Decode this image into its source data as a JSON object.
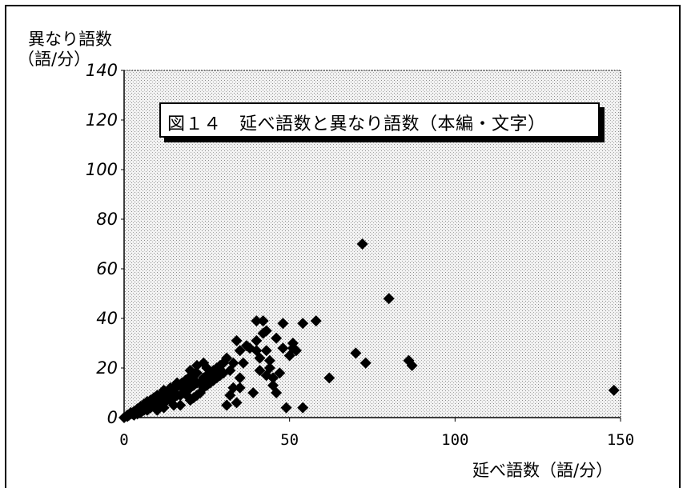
{
  "chart_data": {
    "type": "scatter",
    "title": "図１４　延べ語数と異なり語数（本編・文字）",
    "ylabel_line1": "異なり語数",
    "ylabel_line2": "（語/分）",
    "xlabel": "延べ語数（語/分）",
    "xlim": [
      0,
      150
    ],
    "ylim": [
      0,
      140
    ],
    "xticks": [
      0,
      50,
      100,
      150
    ],
    "xtick_labels": [
      "0",
      "50",
      "100",
      "150"
    ],
    "yticks": [
      0,
      20,
      40,
      60,
      80,
      100,
      120,
      140
    ],
    "ytick_labels": [
      "0",
      "20",
      "40",
      "60",
      "80",
      "100",
      "120",
      "140"
    ],
    "grid": false,
    "marker": "diamond",
    "series": [
      {
        "color": "#000000",
        "points": [
          [
            0,
            0
          ],
          [
            1,
            0.5
          ],
          [
            1.5,
            1
          ],
          [
            2,
            1.5
          ],
          [
            2.5,
            1.5
          ],
          [
            3,
            2
          ],
          [
            3,
            1
          ],
          [
            3.5,
            2.5
          ],
          [
            4,
            3
          ],
          [
            4,
            1.5
          ],
          [
            4.5,
            3
          ],
          [
            5,
            4
          ],
          [
            5,
            2
          ],
          [
            5.5,
            4
          ],
          [
            6,
            4.5
          ],
          [
            6,
            3
          ],
          [
            6.5,
            5
          ],
          [
            7,
            5
          ],
          [
            7,
            3
          ],
          [
            7.5,
            6
          ],
          [
            8,
            6
          ],
          [
            8,
            4
          ],
          [
            8.5,
            6.5
          ],
          [
            9,
            7
          ],
          [
            9,
            5
          ],
          [
            9.5,
            7.5
          ],
          [
            10,
            8
          ],
          [
            10,
            5
          ],
          [
            10.5,
            8.5
          ],
          [
            11,
            8
          ],
          [
            11,
            6
          ],
          [
            11.5,
            9
          ],
          [
            12,
            9
          ],
          [
            12,
            6
          ],
          [
            12.5,
            10
          ],
          [
            13,
            10
          ],
          [
            13,
            7
          ],
          [
            13.5,
            10.5
          ],
          [
            14,
            11
          ],
          [
            14,
            8
          ],
          [
            14.5,
            11
          ],
          [
            15,
            12
          ],
          [
            15,
            8
          ],
          [
            15.5,
            12
          ],
          [
            16,
            12.5
          ],
          [
            16,
            9
          ],
          [
            16.5,
            13
          ],
          [
            17,
            13
          ],
          [
            17,
            9
          ],
          [
            17.5,
            14
          ],
          [
            18,
            14
          ],
          [
            18,
            10
          ],
          [
            18.5,
            15
          ],
          [
            19,
            15
          ],
          [
            19,
            11
          ],
          [
            19.5,
            16
          ],
          [
            20,
            16
          ],
          [
            20,
            12
          ],
          [
            20.5,
            17
          ],
          [
            21,
            17
          ],
          [
            21,
            13
          ],
          [
            21.5,
            18
          ],
          [
            22,
            18
          ],
          [
            22,
            14
          ],
          [
            23,
            14
          ],
          [
            23,
            10
          ],
          [
            24,
            16
          ],
          [
            24,
            12
          ],
          [
            25,
            17
          ],
          [
            25,
            13
          ],
          [
            26,
            18
          ],
          [
            26,
            14
          ],
          [
            27,
            19
          ],
          [
            27,
            15
          ],
          [
            28,
            20
          ],
          [
            28,
            16
          ],
          [
            29,
            21
          ],
          [
            29,
            17
          ],
          [
            30,
            22
          ],
          [
            30,
            18
          ],
          [
            20,
            19
          ],
          [
            22,
            21
          ],
          [
            24,
            22
          ],
          [
            25,
            20
          ],
          [
            18,
            12
          ],
          [
            16,
            14
          ],
          [
            14,
            12
          ],
          [
            12,
            11
          ],
          [
            10,
            9
          ],
          [
            9,
            8
          ],
          [
            8,
            7
          ],
          [
            7,
            6.5
          ],
          [
            6,
            5.5
          ],
          [
            5,
            4.5
          ],
          [
            4,
            3.5
          ],
          [
            3,
            2.5
          ],
          [
            2,
            2
          ],
          [
            1,
            1
          ],
          [
            10,
            3
          ],
          [
            12,
            4
          ],
          [
            15,
            5
          ],
          [
            17,
            5
          ],
          [
            20,
            7
          ],
          [
            22,
            9
          ],
          [
            21,
            8
          ],
          [
            19,
            9
          ],
          [
            14,
            7
          ],
          [
            31,
            24
          ],
          [
            31,
            5
          ],
          [
            32,
            19
          ],
          [
            32,
            9
          ],
          [
            33,
            22
          ],
          [
            33,
            12
          ],
          [
            34,
            31
          ],
          [
            34,
            6
          ],
          [
            35,
            27
          ],
          [
            35,
            16
          ],
          [
            35,
            12
          ],
          [
            36,
            22
          ],
          [
            37,
            29
          ],
          [
            38,
            28
          ],
          [
            39,
            10
          ],
          [
            40,
            39
          ],
          [
            40,
            31
          ],
          [
            40,
            27
          ],
          [
            41,
            24
          ],
          [
            41,
            19
          ],
          [
            42,
            39
          ],
          [
            42,
            34
          ],
          [
            43,
            35
          ],
          [
            43,
            27
          ],
          [
            43,
            17
          ],
          [
            44,
            23
          ],
          [
            44,
            20
          ],
          [
            45,
            16
          ],
          [
            45,
            13
          ],
          [
            46,
            10
          ],
          [
            46,
            32
          ],
          [
            47,
            18
          ],
          [
            48,
            38
          ],
          [
            48,
            28
          ],
          [
            49,
            4
          ],
          [
            50,
            25
          ],
          [
            51,
            28
          ],
          [
            51,
            30
          ],
          [
            52,
            27
          ],
          [
            54,
            38
          ],
          [
            54,
            4
          ],
          [
            58,
            39
          ],
          [
            62,
            16
          ],
          [
            70,
            26
          ],
          [
            72,
            70
          ],
          [
            73,
            22
          ],
          [
            80,
            48
          ],
          [
            86,
            23
          ],
          [
            87,
            21
          ],
          [
            148,
            11
          ]
        ]
      }
    ]
  }
}
